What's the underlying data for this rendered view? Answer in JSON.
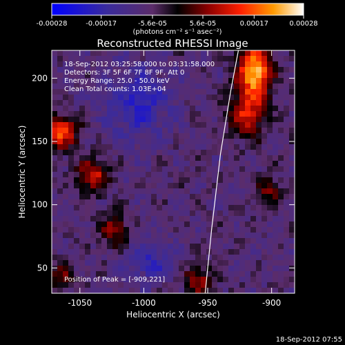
{
  "chart_data": {
    "type": "heatmap",
    "title": "Reconstructed RHESSI Image",
    "xlabel": "Heliocentric X (arcsec)",
    "ylabel": "Heliocentric Y (arcsec)",
    "xlim": [
      -1072,
      -882
    ],
    "ylim": [
      30,
      222
    ],
    "x_ticks": [
      -1050,
      -1000,
      -950,
      -900
    ],
    "y_ticks": [
      50,
      100,
      150,
      200
    ],
    "colorbar": {
      "min": -0.00028,
      "max": 0.00028,
      "tick_values": [
        -0.00028,
        -0.00017,
        -5.6e-05,
        5.6e-05,
        0.00017,
        0.00028
      ],
      "tick_labels": [
        "-0.00028",
        "-0.00017",
        "-5.6e-05",
        "5.6e-05",
        "0.00017",
        "0.00028"
      ],
      "unit_label": "(photons cm⁻² s⁻¹ asec⁻²)"
    },
    "annotations": [
      "18-Sep-2012 03:25:58.000 to 03:31:58.000",
      "Detectors: 3F 5F 6F 7F 8F 9F, Att 0",
      "Energy Range: 25.0 - 50.0 keV",
      "Clean    Total counts: 1.03E+04"
    ],
    "peak_label": "Position of Peak = [-909,221]",
    "peak": [
      -909,
      221
    ],
    "limb_line": [
      [
        -952,
        30
      ],
      [
        -947,
        80
      ],
      [
        -940,
        140
      ],
      [
        -932,
        190
      ],
      [
        -926,
        222
      ]
    ],
    "sources": [
      {
        "x": -913,
        "y": 205,
        "amp": 1.0,
        "sx": 9,
        "sy": 16
      },
      {
        "x": -920,
        "y": 170,
        "amp": 0.55,
        "sx": 10,
        "sy": 12
      },
      {
        "x": -1065,
        "y": 158,
        "amp": 0.7,
        "sx": 10,
        "sy": 9
      },
      {
        "x": -1040,
        "y": 123,
        "amp": 0.55,
        "sx": 9,
        "sy": 10
      },
      {
        "x": -1023,
        "y": 80,
        "amp": 0.45,
        "sx": 8,
        "sy": 9
      },
      {
        "x": -902,
        "y": 110,
        "amp": 0.35,
        "sx": 7,
        "sy": 9
      },
      {
        "x": -958,
        "y": 40,
        "amp": 0.45,
        "sx": 9,
        "sy": 8
      },
      {
        "x": -1065,
        "y": 45,
        "amp": 0.35,
        "sx": 8,
        "sy": 8
      },
      {
        "x": -1005,
        "y": 180,
        "amp": -0.35,
        "sx": 18,
        "sy": 20
      },
      {
        "x": -995,
        "y": 55,
        "amp": -0.3,
        "sx": 14,
        "sy": 12
      }
    ]
  },
  "footer": {
    "timestamp": "18-Sep-2012 07:55"
  }
}
